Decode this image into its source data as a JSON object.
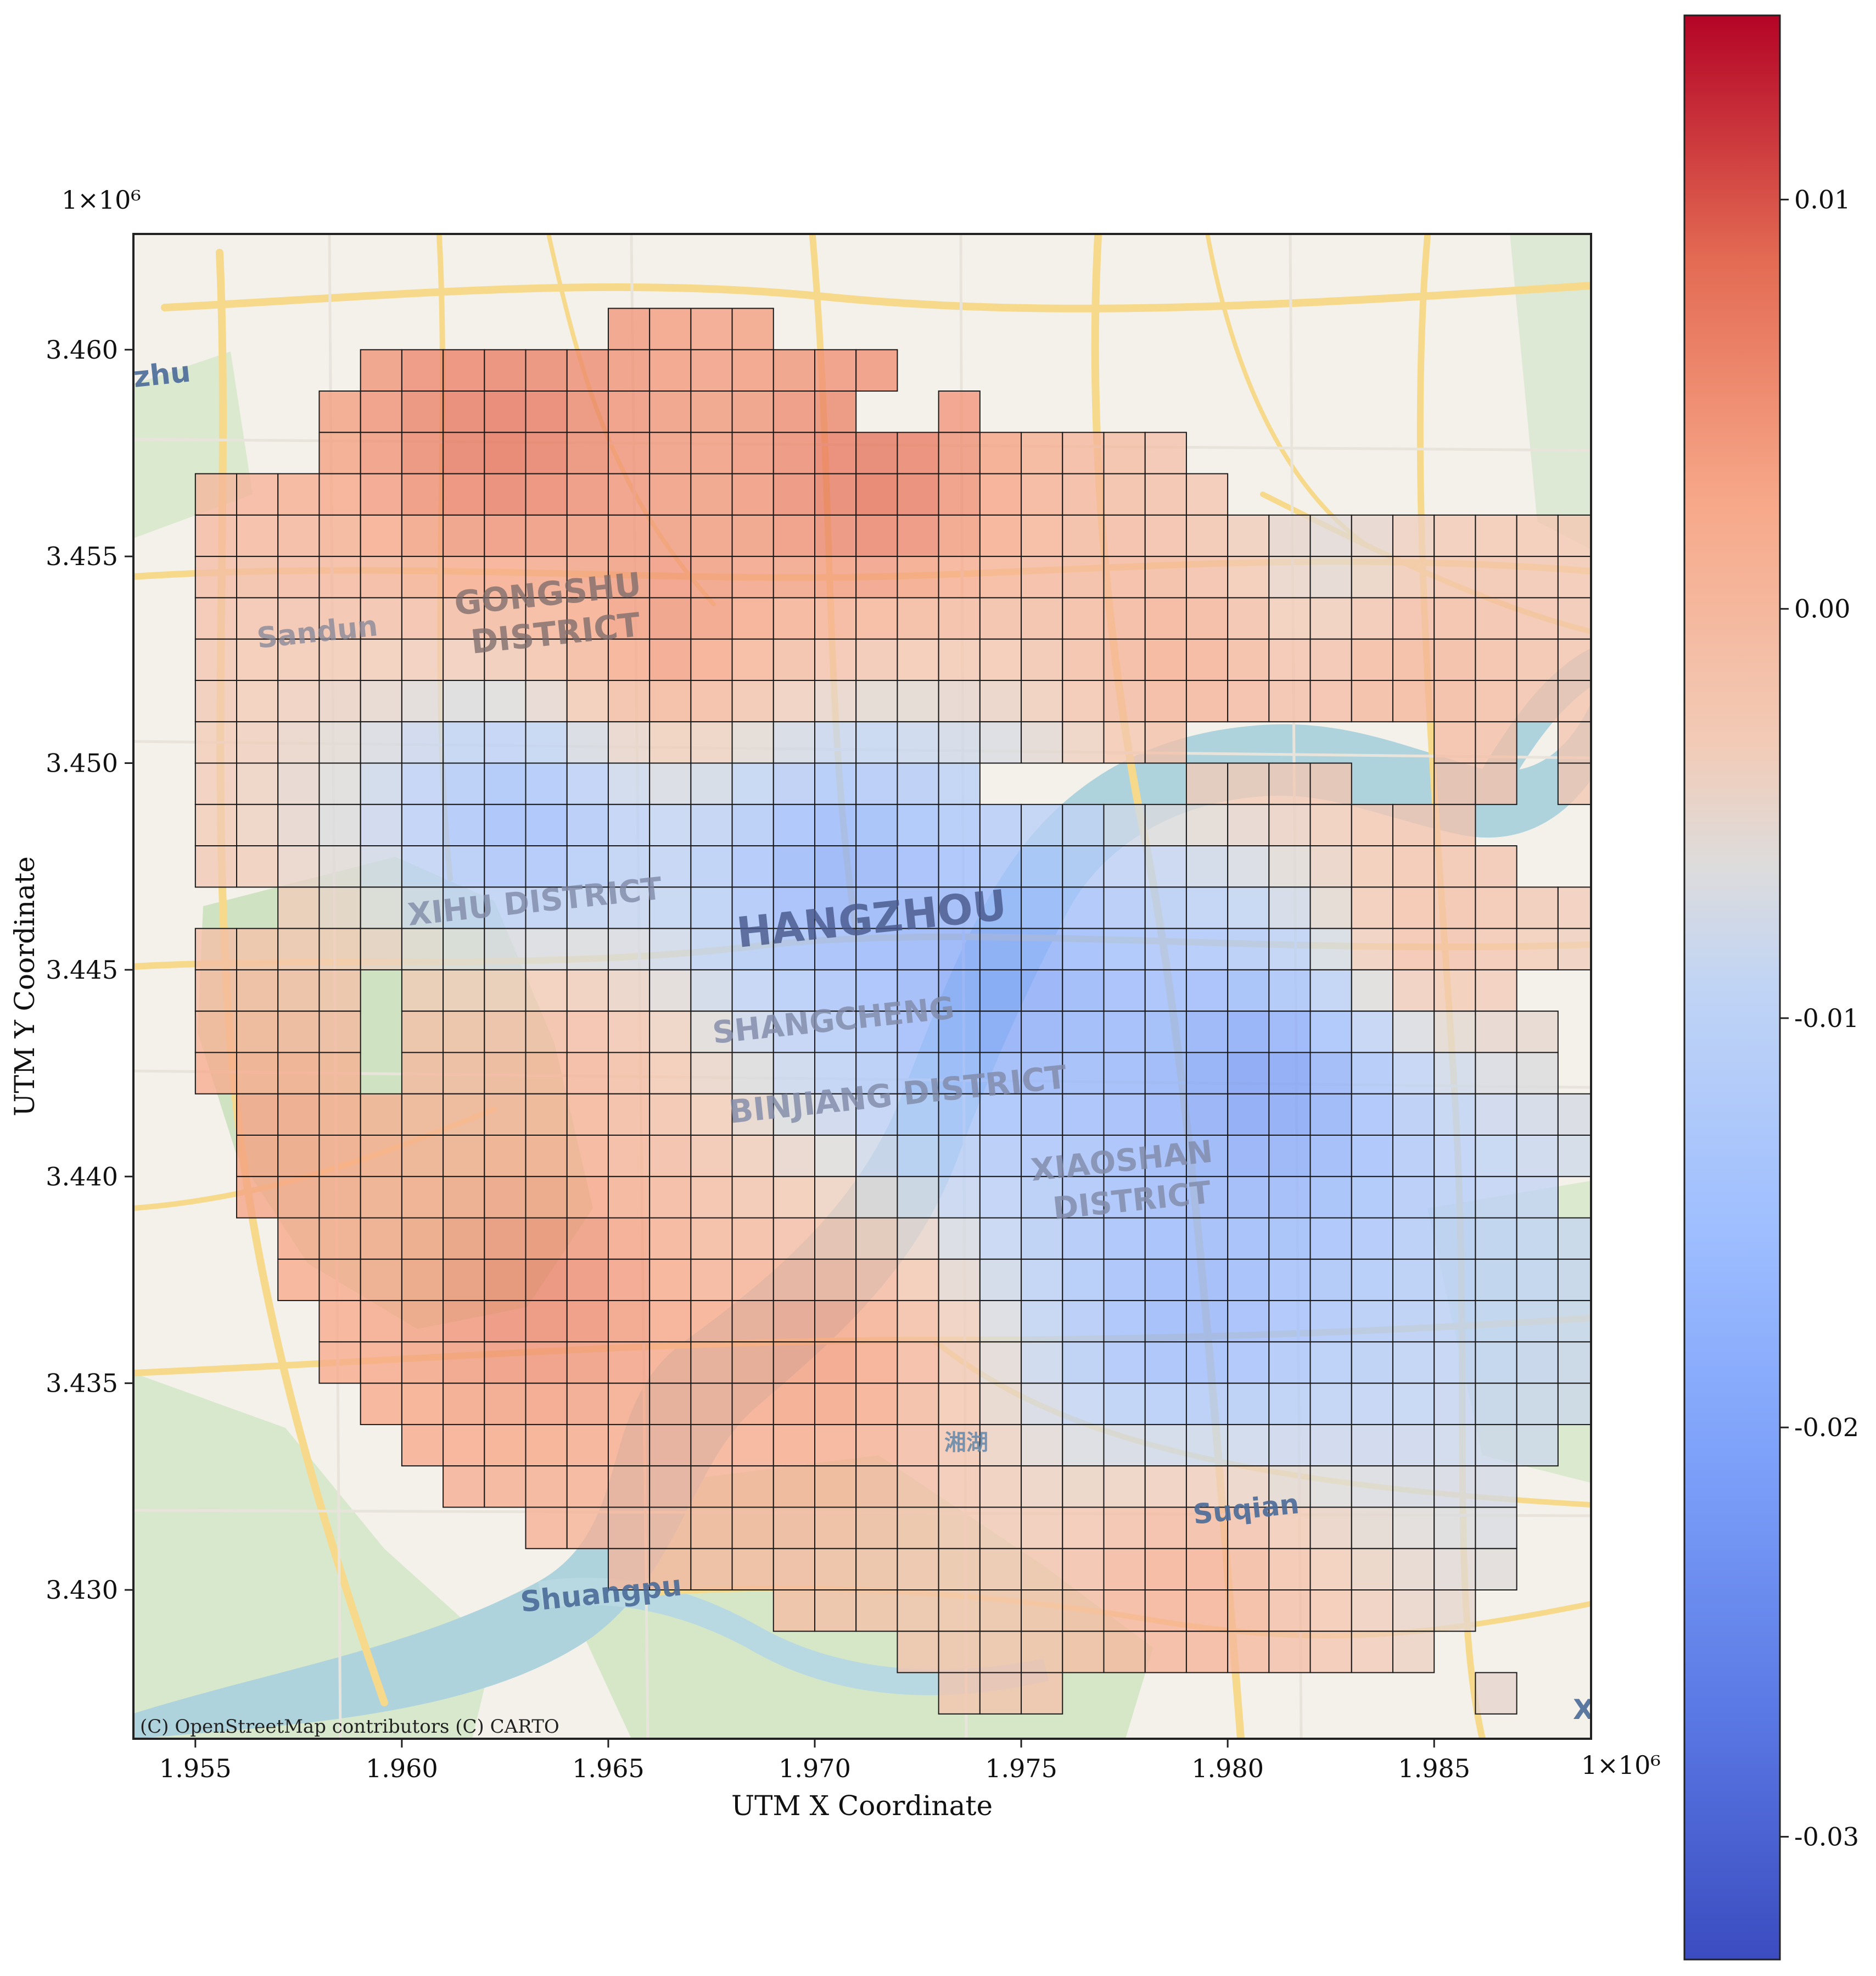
{
  "chart_data": {
    "type": "heatmap",
    "title": "",
    "xlabel": "UTM X Coordinate",
    "ylabel": "UTM Y Coordinate",
    "x_offset_text": "1×10⁶",
    "y_offset_text": "1×10⁶",
    "xlim": [
      1.9535,
      1.9888
    ],
    "ylim": [
      3.4264,
      3.4628
    ],
    "x_ticks": [
      "1.955",
      "1.960",
      "1.965",
      "1.970",
      "1.975",
      "1.980",
      "1.985"
    ],
    "y_ticks": [
      "3.430",
      "3.435",
      "3.440",
      "3.445",
      "3.450",
      "3.455",
      "3.460"
    ],
    "cell_size": 0.001,
    "colormap": "coolwarm",
    "colorbar": {
      "vmin": -0.033,
      "vmax": 0.0145,
      "ticks": [
        "0.01",
        "0.00",
        "-0.01",
        "-0.02",
        "-0.03"
      ],
      "tick_values": [
        0.01,
        0.0,
        -0.01,
        -0.02,
        -0.03
      ]
    },
    "grid_x0": 1.955,
    "grid_y_top": 3.461,
    "rows": [
      "..........XXXX..........................",
      "....XXXXXXXXXXXXX.......................",
      "...XXXXXXXXXXXXX..X.....................",
      "...XXXXXXXXXXXXXXXXXXXXX................",
      "XXXXXXXXXXXXXXXXXXXXXXXXX...............",
      "XXXXXXXXXXXXXXXXXXXXXXXXXXXXXXXXXX......",
      "XXXXXXXXXXXXXXXXXXXXXXXXXXXXXXXXXX......",
      "XXXXXXXXXXXXXXXXXXXXXXXXXXXXXXXXXX......",
      "XXXXXXXXXXXXXXXXXXXXXXXXXXXXXXXXXX......",
      "XXXXXXXXXXXXXXXXXXXXXXXXXXXXXXXXXX......",
      "XXXXXXXXXXXXXXXXXXXXXXXX......XX.X......",
      "XXXXXXXXXXXXXXXXXXX.....XXXX..XX.X......",
      "XXXXXXXXXXXXXXXXXXXXXXXXXXXXXXX.........",
      "XXXXXXXXXXXXXXXXXXXXXXXXXXXXXXXX.....X..",
      "..XXXXXXXXXXXXXXXXXXXXXXXXXXXXXXXXXXXXX.",
      "XXXXXXXXXXXXXXXXXXXXXXXXXXXXXXXXXXXXXX..",
      "XXXX.XXXXXXXXXXXXXXXXXXXXXXXXXXX..XX....",
      "XXXX.XXXXXXXXXXXXXXXXXXXXXXXXXXXX...XX..",
      "XXXX.XXXXXXXXXXXXXXXXXXXXXXXXXXXX..XX...",
      ".XXXXXXXXXXXXXXXXXXXXXXXXXXXXXXXXXXXX...",
      ".XXXXXXXXXXXXXXXXXXXXXXXXXXXXXXXXX.XX...",
      ".XXXXXXXXXXXXXXXXXXXXXXXXXXXXXXXX..XX...",
      "..XXXXXXXXXXXXXXXXXXXXXXXXXXXXXXXXXXXX..",
      "..XXXXXXXXXXXXXXXXXXXXXXXXXXXXXXXX.XX...",
      "...XXXXXXXXXXXXXXXXXXXXXXXXXXXXXXXXXX...",
      "...XXXXXXXXXXXXXXXXXXXXXXXXXXXXXXXXX....",
      "....XXXXXXXXXXXXXXXXXXXXXXXXXXXXXX......",
      ".....XXXXXXXXXXXXXXXXXXXXXXXXXXXX.......",
      "......XXXXXXXXXXXXXXXXXXXXXXXXXX........",
      "........XXXXXXXXXXXXXXXXXXXXXXXX........",
      "..........XXXXXXXXXXXXXXXXXXXXXX........",
      "..............XXXXXXXXXXXXXXXXX.........",
      ".................XXXXXXXXXXXXX..........",
      "..................XXX..........X........"
    ],
    "centers": [
      {
        "x": 1.9715,
        "y": 3.4565,
        "v": 0.0125
      },
      {
        "x": 1.9625,
        "y": 3.4575,
        "v": 0.011
      },
      {
        "x": 1.9665,
        "y": 3.453,
        "v": 0.01
      },
      {
        "x": 1.9705,
        "y": 3.4475,
        "v": -0.026
      },
      {
        "x": 1.9745,
        "y": 3.4445,
        "v": -0.027
      },
      {
        "x": 1.963,
        "y": 3.4485,
        "v": -0.024
      },
      {
        "x": 1.979,
        "y": 3.4365,
        "v": -0.022
      },
      {
        "x": 1.981,
        "y": 3.4425,
        "v": -0.031
      },
      {
        "x": 1.964,
        "y": 3.4425,
        "v": 0.004
      },
      {
        "x": 1.9705,
        "y": 3.4357,
        "v": 0.008
      },
      {
        "x": 1.9635,
        "y": 3.4375,
        "v": 0.01
      },
      {
        "x": 1.9845,
        "y": 3.4455,
        "v": 0.004
      },
      {
        "x": 1.984,
        "y": 3.4525,
        "v": 0.006
      },
      {
        "x": 1.979,
        "y": 3.4525,
        "v": 0.007
      },
      {
        "x": 1.9825,
        "y": 3.4545,
        "v": -0.012
      },
      {
        "x": 1.957,
        "y": 3.441,
        "v": 0.005
      },
      {
        "x": 1.979,
        "y": 3.4305,
        "v": 0.005
      }
    ]
  },
  "map": {
    "labels": [
      {
        "text": "GONGSHU",
        "color": "#7a6a6a"
      },
      {
        "text": "DISTRICT",
        "color": "#7a6a6a"
      },
      {
        "text": "Sandun",
        "color": "#8a8a9a"
      },
      {
        "text": "XIHU DISTRICT",
        "color": "#7f8aa8"
      },
      {
        "text": "HANGZHOU",
        "color": "#46568a"
      },
      {
        "text": "SHANGCHENG",
        "color": "#7f8aa8"
      },
      {
        "text": "BINJIANG DISTRICT",
        "color": "#7f8aa8"
      },
      {
        "text": "XIAOSHAN",
        "color": "#7f8aa8"
      },
      {
        "text": "DISTRICT",
        "color": "#7f8aa8"
      },
      {
        "text": "Suqian",
        "color": "#4a6a98"
      },
      {
        "text": "Shuangpu",
        "color": "#4a6a98"
      },
      {
        "text": "zhu",
        "color": "#4a6a98"
      },
      {
        "text": "X",
        "color": "#4a6a98"
      },
      {
        "text": "湘湖",
        "color": "#6a8aa8"
      }
    ],
    "credit": "(C) OpenStreetMap contributors (C) CARTO",
    "colors": {
      "land": "#f4f1ea",
      "park": "#cfe3c2",
      "water": "#aed3dd",
      "road": "#f6d98a"
    }
  }
}
